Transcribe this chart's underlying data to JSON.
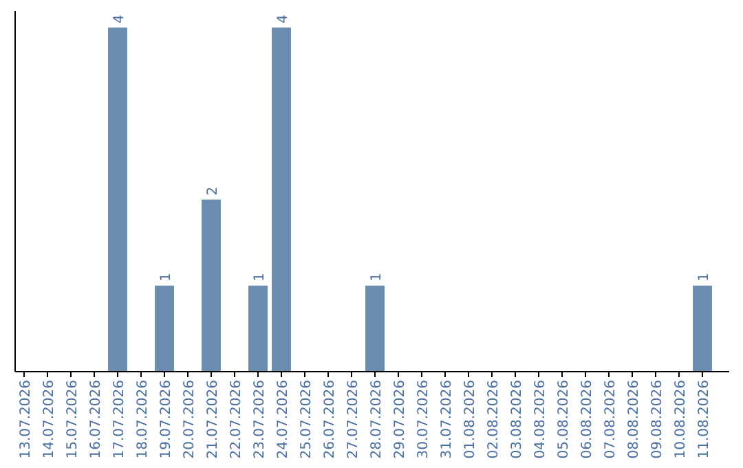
{
  "chart_data": {
    "type": "bar",
    "categories": [
      "13.07.2026",
      "14.07.2026",
      "15.07.2026",
      "16.07.2026",
      "17.07.2026",
      "18.07.2026",
      "19.07.2026",
      "20.07.2026",
      "21.07.2026",
      "22.07.2026",
      "23.07.2026",
      "24.07.2026",
      "25.07.2026",
      "26.07.2026",
      "27.07.2026",
      "28.07.2026",
      "29.07.2026",
      "30.07.2026",
      "31.07.2026",
      "01.08.2026",
      "02.08.2026",
      "03.08.2026",
      "04.08.2026",
      "05.08.2026",
      "06.08.2026",
      "07.08.2026",
      "08.08.2026",
      "09.08.2026",
      "10.08.2026",
      "11.08.2026"
    ],
    "values": [
      0,
      0,
      0,
      0,
      4,
      0,
      1,
      0,
      2,
      0,
      1,
      4,
      0,
      0,
      0,
      1,
      0,
      0,
      0,
      0,
      0,
      0,
      0,
      0,
      0,
      0,
      0,
      0,
      0,
      1
    ],
    "value_labels": [
      null,
      null,
      null,
      null,
      "4",
      null,
      "1",
      null,
      "2",
      null,
      "1",
      "4",
      null,
      null,
      null,
      "1",
      null,
      null,
      null,
      null,
      null,
      null,
      null,
      null,
      null,
      null,
      null,
      null,
      null,
      "1"
    ],
    "color": "#6b8cae"
  }
}
